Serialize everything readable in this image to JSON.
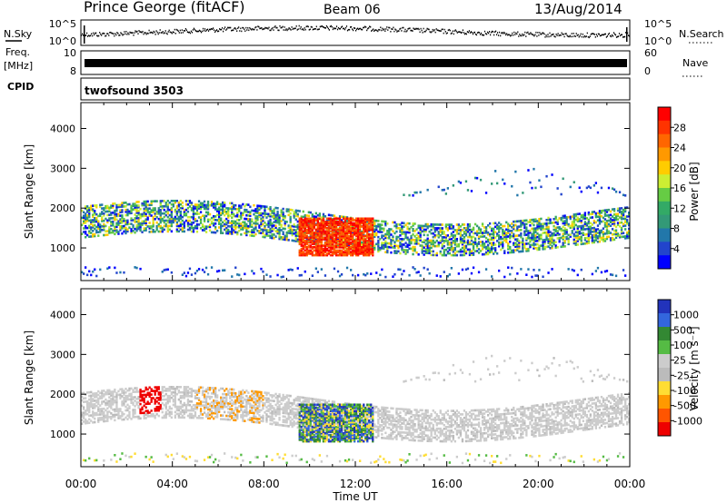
{
  "header": {
    "station": "Prince George (fitACF)",
    "beam": "Beam 06",
    "date": "13/Aug/2014"
  },
  "panels": {
    "nsky": {
      "label": "N.Sky",
      "right_label": "N.Search",
      "ticks_left": [
        "10^5",
        "10^0"
      ],
      "ticks_right": [
        "10^5",
        "10^0"
      ]
    },
    "freq": {
      "label_top": "Freq.",
      "label_bottom": "[MHz]",
      "right_label": "Nave",
      "ticks_left": [
        "10",
        "8"
      ],
      "ticks_right": [
        "60",
        "0"
      ]
    },
    "cpid": {
      "label": "CPID",
      "program": "twofsound 3503"
    }
  },
  "chart_data": [
    {
      "type": "heatmap",
      "title": "",
      "xlabel": "Time UT",
      "ylabel": "Slant Range [km]",
      "x_ticks": [
        "00:00",
        "04:00",
        "08:00",
        "12:00",
        "16:00",
        "20:00",
        "00:00"
      ],
      "y_ticks": [
        4000,
        3000,
        2000,
        1000
      ],
      "xlim_hours": [
        0,
        24
      ],
      "ylim_km": [
        180,
        4650
      ],
      "colorbar": {
        "label": "Power [dB]",
        "ticks": [
          "28",
          "24",
          "20",
          "16",
          "12",
          "8",
          "4"
        ],
        "range": [
          0,
          30
        ],
        "colors": [
          "#ff0000",
          "#ff3300",
          "#ff6600",
          "#ff9900",
          "#ffcc00",
          "#ccee33",
          "#66cc44",
          "#33aa66",
          "#339977",
          "#2277aa",
          "#2244cc",
          "#0000ff"
        ]
      },
      "features": [
        {
          "name": "main echo band",
          "time_hours": [
            0,
            24
          ],
          "range_km": [
            1100,
            2100
          ]
        },
        {
          "name": "strong echoes",
          "time_hours": [
            9.5,
            12.5
          ],
          "range_km": [
            800,
            1700
          ],
          "power_db": 28
        },
        {
          "name": "upper arc",
          "time_hours": [
            14,
            24
          ],
          "range_km": [
            2000,
            3300
          ]
        },
        {
          "name": "near range",
          "time_hours": [
            0,
            24
          ],
          "range_km": [
            200,
            600
          ]
        }
      ]
    },
    {
      "type": "heatmap",
      "title": "",
      "xlabel": "Time UT",
      "ylabel": "Slant Range [km]",
      "x_ticks": [
        "00:00",
        "04:00",
        "08:00",
        "12:00",
        "16:00",
        "20:00",
        "00:00"
      ],
      "y_ticks": [
        4000,
        3000,
        2000,
        1000
      ],
      "xlim_hours": [
        0,
        24
      ],
      "ylim_km": [
        180,
        4650
      ],
      "colorbar": {
        "label": "Velocity [m s⁻¹]",
        "ticks": [
          "1000",
          "500",
          "100",
          "25",
          "-25",
          "-100",
          "-500",
          "-1000"
        ],
        "colors": [
          "#2233bb",
          "#3366dd",
          "#338833",
          "#55bb44",
          "#cccccc",
          "#bbbbbb",
          "#ffdd33",
          "#ff9900",
          "#ff5500",
          "#ee0000"
        ]
      },
      "features": [
        {
          "name": "ground scatter (grey)",
          "time_hours": [
            0,
            24
          ],
          "range_km": [
            500,
            2500
          ]
        },
        {
          "name": "positive velocity patch",
          "time_hours": [
            9,
            13
          ],
          "range_km": [
            800,
            1800
          ],
          "velocity_ms": 500
        },
        {
          "name": "negative velocity patches",
          "time_hours": [
            2.5,
            3.5
          ],
          "range_km": [
            1500,
            2100
          ],
          "velocity_ms": -1000
        }
      ]
    }
  ]
}
